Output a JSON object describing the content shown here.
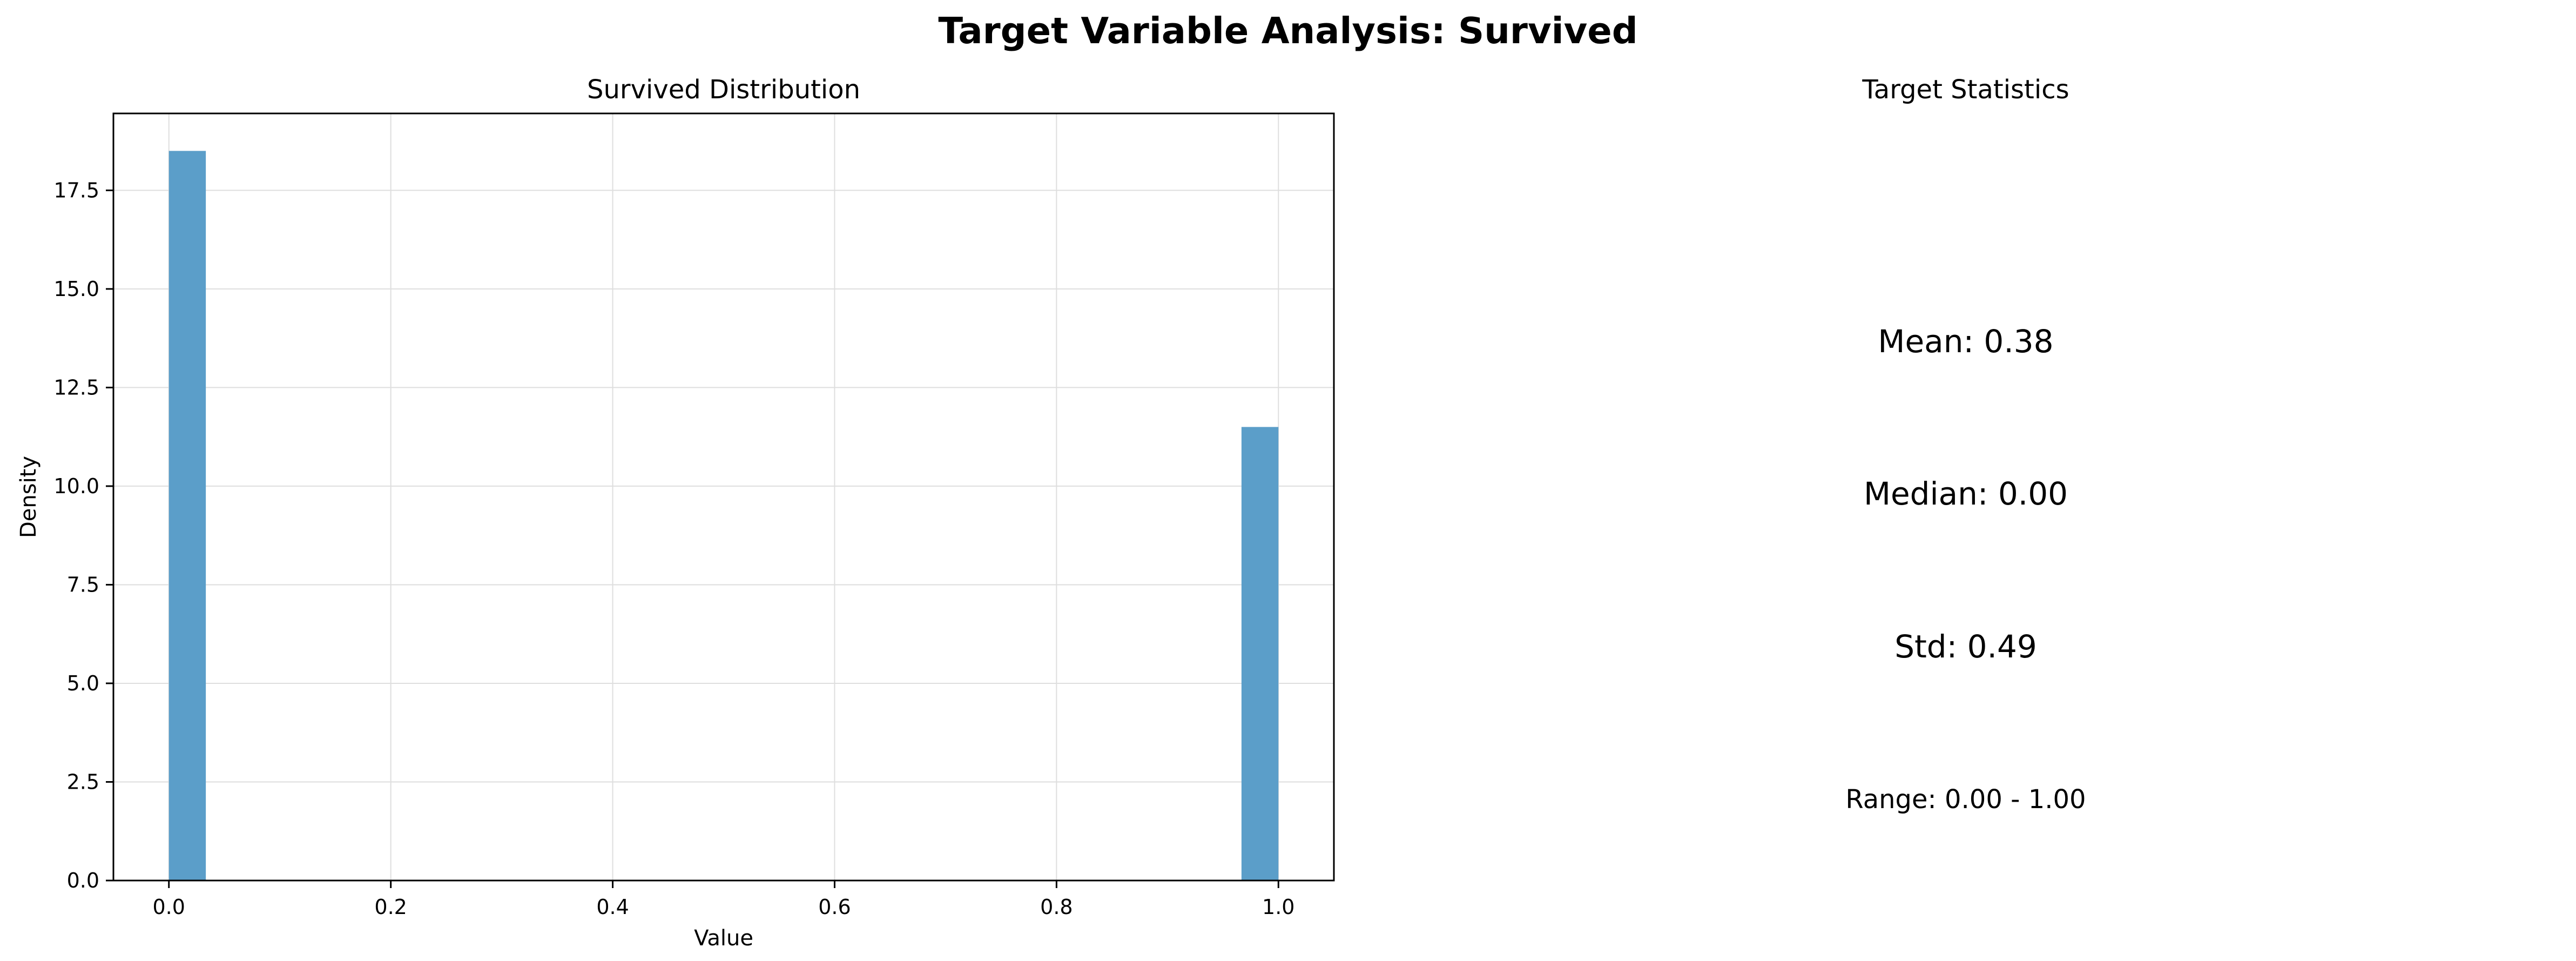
{
  "figure": {
    "title": "Target Variable Analysis: Survived"
  },
  "chart_data": [
    {
      "type": "bar",
      "title": "Survived Distribution",
      "xlabel": "Value",
      "ylabel": "Density",
      "xlim": [
        -0.05,
        1.05
      ],
      "ylim": [
        0,
        19.45
      ],
      "xticks": [
        0.0,
        0.2,
        0.4,
        0.6,
        0.8,
        1.0
      ],
      "xtick_labels": [
        "0.0",
        "0.2",
        "0.4",
        "0.6",
        "0.8",
        "1.0"
      ],
      "yticks": [
        0.0,
        2.5,
        5.0,
        7.5,
        10.0,
        12.5,
        15.0,
        17.5
      ],
      "ytick_labels": [
        "0.0",
        "2.5",
        "5.0",
        "7.5",
        "10.0",
        "12.5",
        "15.0",
        "17.5"
      ],
      "grid": true,
      "bar_color": "#5b9ec9",
      "bins": [
        {
          "x0": 0.0,
          "x1": 0.0333,
          "value": 18.5
        },
        {
          "x0": 0.9667,
          "x1": 1.0,
          "value": 11.5
        }
      ]
    }
  ],
  "stats_panel": {
    "title": "Target Statistics",
    "mean": "Mean: 0.38",
    "median": "Median: 0.00",
    "std": "Std: 0.49",
    "range": "Range: 0.00 - 1.00"
  }
}
